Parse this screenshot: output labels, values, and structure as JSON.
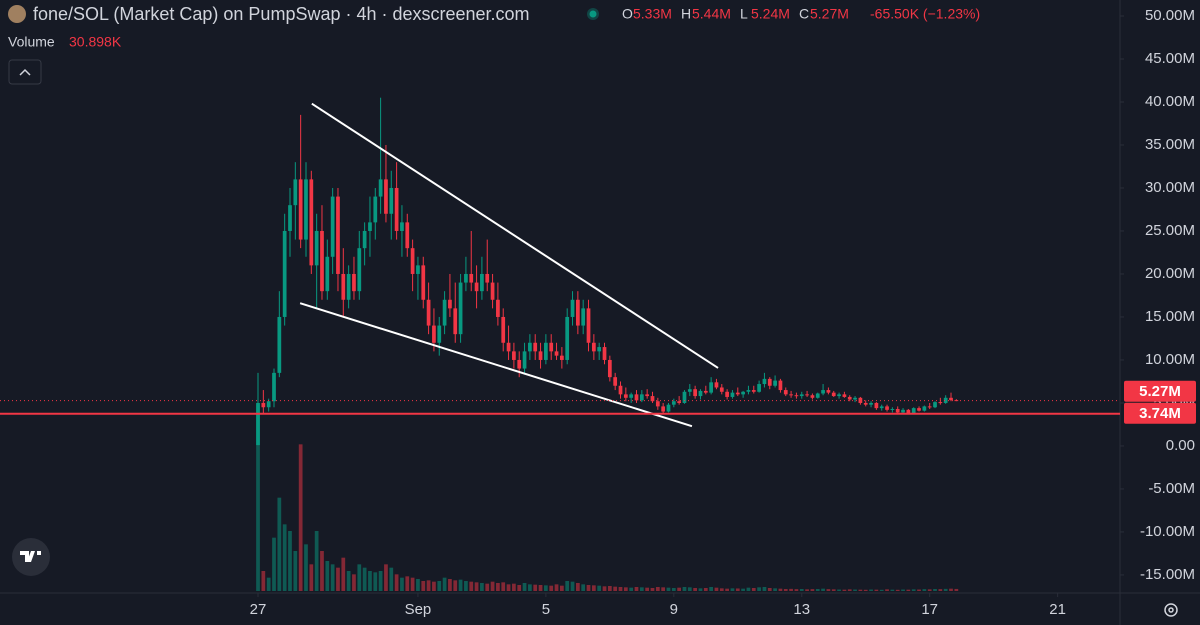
{
  "header": {
    "title": "fone/SOL (Market Cap) on PumpSwap · 4h · dexscreener.com",
    "ohlc": [
      {
        "key": "O",
        "value": "5.33M"
      },
      {
        "key": "H",
        "value": "5.44M"
      },
      {
        "key": "L",
        "value": "5.24M"
      },
      {
        "key": "C",
        "value": "5.27M"
      }
    ],
    "change": "-65.50K (−1.23%)",
    "volume_label": "Volume",
    "volume_value": "30.898K"
  },
  "chart_data": {
    "type": "candlestick",
    "up_color": "#089981",
    "down_color": "#f23645",
    "x": [
      0,
      1,
      2,
      3,
      4,
      5,
      6,
      7,
      8,
      9,
      10,
      11,
      12,
      13,
      14,
      15,
      16,
      17,
      18,
      19,
      20,
      21,
      22,
      23,
      24,
      25,
      26,
      27,
      28,
      29,
      30,
      31,
      32,
      33,
      34,
      35,
      36,
      37,
      38,
      39,
      40,
      41,
      42,
      43,
      44,
      45,
      46,
      47,
      48,
      49,
      50,
      51,
      52,
      53,
      54,
      55,
      56,
      57,
      58,
      59,
      60,
      61,
      62,
      63,
      64,
      65,
      66,
      67,
      68,
      69,
      70,
      71,
      72,
      73,
      74,
      75,
      76,
      77,
      78,
      79,
      80,
      81,
      82,
      83,
      84,
      85,
      86,
      87,
      88,
      89,
      90,
      91,
      92,
      93,
      94,
      95,
      96,
      97,
      98,
      99,
      100,
      101,
      102,
      103,
      104,
      105,
      106,
      107,
      108,
      109,
      110,
      111,
      112,
      113,
      114,
      115,
      116,
      117,
      118,
      119,
      120,
      121,
      122,
      123,
      124,
      125,
      126,
      127,
      128,
      129,
      130,
      131
    ],
    "ohlc": [
      [
        0.1,
        8.5,
        0.1,
        5.0
      ],
      [
        5.0,
        6.5,
        3.8,
        4.5
      ],
      [
        4.5,
        5.5,
        4.0,
        5.2
      ],
      [
        5.2,
        9.0,
        4.5,
        8.5
      ],
      [
        8.5,
        18,
        8,
        15
      ],
      [
        15,
        27,
        14,
        25
      ],
      [
        25,
        30,
        22,
        28
      ],
      [
        28,
        33,
        24,
        31
      ],
      [
        31,
        38.5,
        23,
        24
      ],
      [
        24,
        33,
        22,
        31
      ],
      [
        31,
        32,
        20,
        21
      ],
      [
        21,
        27,
        16,
        25
      ],
      [
        25,
        28,
        17,
        18
      ],
      [
        18,
        24,
        17,
        22
      ],
      [
        22,
        30,
        20,
        29
      ],
      [
        29,
        30,
        18,
        20
      ],
      [
        20,
        23,
        15,
        17
      ],
      [
        17,
        21,
        16,
        20
      ],
      [
        20,
        22,
        17,
        18
      ],
      [
        18,
        25,
        17,
        23
      ],
      [
        23,
        26,
        21,
        25
      ],
      [
        25,
        29,
        22,
        26
      ],
      [
        26,
        30,
        24,
        29
      ],
      [
        29,
        40.5,
        27,
        31
      ],
      [
        31,
        35,
        26,
        27
      ],
      [
        27,
        32,
        24,
        30
      ],
      [
        30,
        33,
        24,
        25
      ],
      [
        25,
        28,
        22,
        26
      ],
      [
        26,
        27,
        22,
        23
      ],
      [
        23,
        24,
        18,
        20
      ],
      [
        20,
        22,
        17,
        21
      ],
      [
        21,
        22,
        16,
        17
      ],
      [
        17,
        19,
        13,
        14
      ],
      [
        14,
        16,
        11,
        12
      ],
      [
        12,
        15,
        10.5,
        14
      ],
      [
        14,
        18,
        13,
        17
      ],
      [
        17,
        20,
        15,
        16
      ],
      [
        16,
        19,
        12,
        13
      ],
      [
        13,
        20,
        12,
        19
      ],
      [
        19,
        22,
        18,
        20
      ],
      [
        20,
        25,
        18,
        19
      ],
      [
        19,
        21,
        16,
        18
      ],
      [
        18,
        22,
        17,
        20
      ],
      [
        20,
        24,
        18,
        19
      ],
      [
        19,
        20,
        16,
        17
      ],
      [
        17,
        19,
        14,
        15
      ],
      [
        15,
        16,
        11,
        12
      ],
      [
        12,
        14,
        10,
        11
      ],
      [
        11,
        12,
        9,
        10
      ],
      [
        10,
        11,
        8,
        9
      ],
      [
        9,
        12,
        8.5,
        11
      ],
      [
        11,
        13,
        10,
        12
      ],
      [
        12,
        13,
        10,
        11
      ],
      [
        11,
        12,
        9,
        10
      ],
      [
        10,
        13,
        9.5,
        12
      ],
      [
        12,
        13,
        10,
        11
      ],
      [
        11,
        12,
        10,
        10.5
      ],
      [
        10.5,
        11.5,
        9,
        10
      ],
      [
        10,
        16,
        9.5,
        15
      ],
      [
        15,
        18,
        14,
        17
      ],
      [
        17,
        18,
        13,
        14
      ],
      [
        14,
        17,
        13,
        16
      ],
      [
        16,
        17,
        11,
        12
      ],
      [
        12,
        13,
        10,
        11
      ],
      [
        11,
        12,
        10,
        11.5
      ],
      [
        11.5,
        12,
        9.5,
        10
      ],
      [
        10,
        10.5,
        7.5,
        8
      ],
      [
        8,
        8.5,
        6.5,
        7
      ],
      [
        7,
        7.5,
        5.5,
        6
      ],
      [
        6,
        6.8,
        5.2,
        5.6
      ],
      [
        5.6,
        6.2,
        5,
        6
      ],
      [
        6,
        6.5,
        5,
        5.3
      ],
      [
        5.3,
        6.5,
        5.1,
        6
      ],
      [
        6,
        6.6,
        5.5,
        5.8
      ],
      [
        5.8,
        6.3,
        5,
        5.2
      ],
      [
        5.2,
        5.6,
        4.2,
        4.6
      ],
      [
        4.6,
        5,
        3.8,
        4
      ],
      [
        4,
        5,
        3.9,
        4.8
      ],
      [
        4.8,
        5.5,
        4.5,
        5.2
      ],
      [
        5.2,
        5.8,
        4.8,
        5
      ],
      [
        5,
        6.5,
        4.9,
        6.3
      ],
      [
        6.3,
        7.2,
        5.8,
        6.6
      ],
      [
        6.6,
        7,
        5.5,
        5.8
      ],
      [
        5.8,
        6.6,
        5.4,
        6.4
      ],
      [
        6.4,
        7,
        6,
        6.2
      ],
      [
        6.2,
        8,
        6,
        7.4
      ],
      [
        7.4,
        7.8,
        6.6,
        6.8
      ],
      [
        6.8,
        7.2,
        6,
        6.3
      ],
      [
        6.3,
        6.6,
        5.4,
        5.7
      ],
      [
        5.7,
        6.5,
        5.5,
        6.2
      ],
      [
        6.2,
        6.8,
        5.8,
        6
      ],
      [
        6,
        6.4,
        5.6,
        6.3
      ],
      [
        6.3,
        7,
        6,
        6.5
      ],
      [
        6.5,
        7,
        6.1,
        6.3
      ],
      [
        6.3,
        7.6,
        6.2,
        7.2
      ],
      [
        7.2,
        8.5,
        6.8,
        7.8
      ],
      [
        7.8,
        8,
        6.6,
        7
      ],
      [
        7,
        8.2,
        6.8,
        7.6
      ],
      [
        7.6,
        7.8,
        6.2,
        6.5
      ],
      [
        6.5,
        6.8,
        5.8,
        6
      ],
      [
        6,
        6.4,
        5.6,
        5.9
      ],
      [
        5.9,
        6.2,
        5.5,
        5.8
      ],
      [
        5.8,
        6.3,
        5.5,
        6
      ],
      [
        6,
        6.4,
        5.7,
        5.9
      ],
      [
        5.9,
        6.1,
        5.4,
        5.6
      ],
      [
        5.6,
        6.2,
        5.5,
        6.1
      ],
      [
        6.1,
        7.2,
        5.9,
        6.5
      ],
      [
        6.5,
        6.8,
        6,
        6.2
      ],
      [
        6.2,
        6.4,
        5.7,
        5.8
      ],
      [
        5.8,
        6.2,
        5.5,
        6
      ],
      [
        6,
        6.3,
        5.6,
        5.7
      ],
      [
        5.7,
        5.9,
        5.2,
        5.4
      ],
      [
        5.4,
        5.8,
        5.1,
        5.6
      ],
      [
        5.6,
        5.7,
        4.8,
        5
      ],
      [
        5,
        5.3,
        4.6,
        4.8
      ],
      [
        4.8,
        5.2,
        4.5,
        5
      ],
      [
        5,
        5.1,
        4.2,
        4.4
      ],
      [
        4.4,
        4.8,
        4.1,
        4.6
      ],
      [
        4.6,
        4.8,
        4,
        4.2
      ],
      [
        4.2,
        4.5,
        3.9,
        4.3
      ],
      [
        4.3,
        4.6,
        3.8,
        3.9
      ],
      [
        3.9,
        4.4,
        3.7,
        4.2
      ],
      [
        4.2,
        4.3,
        3.7,
        3.8
      ],
      [
        3.8,
        4.5,
        3.7,
        4.4
      ],
      [
        4.4,
        4.6,
        4,
        4.1
      ],
      [
        4.1,
        4.7,
        4,
        4.6
      ],
      [
        4.6,
        5,
        4.3,
        4.5
      ],
      [
        4.5,
        5.2,
        4.4,
        5.1
      ],
      [
        5.1,
        5.6,
        4.8,
        5
      ],
      [
        5,
        5.9,
        4.9,
        5.6
      ],
      [
        5.6,
        6.2,
        5.2,
        5.33
      ],
      [
        5.33,
        5.44,
        5.24,
        5.27
      ]
    ],
    "volume": [
      2800,
      300,
      200,
      800,
      1400,
      1000,
      900,
      600,
      2200,
      700,
      400,
      900,
      600,
      450,
      400,
      350,
      500,
      300,
      250,
      400,
      350,
      300,
      280,
      300,
      400,
      350,
      250,
      200,
      220,
      200,
      180,
      150,
      160,
      140,
      150,
      200,
      180,
      160,
      170,
      150,
      140,
      130,
      120,
      110,
      140,
      120,
      130,
      100,
      110,
      90,
      120,
      100,
      95,
      90,
      85,
      80,
      100,
      80,
      150,
      140,
      120,
      100,
      90,
      85,
      80,
      70,
      75,
      65,
      60,
      55,
      50,
      60,
      55,
      50,
      45,
      60,
      55,
      50,
      45,
      50,
      60,
      55,
      45,
      40,
      45,
      60,
      50,
      40,
      35,
      40,
      38,
      35,
      50,
      45,
      55,
      60,
      45,
      40,
      35,
      30,
      32,
      28,
      30,
      25,
      28,
      30,
      35,
      28,
      25,
      22,
      20,
      25,
      22,
      20,
      18,
      22,
      20,
      18,
      25,
      20,
      18,
      22,
      20,
      25,
      22,
      28,
      25,
      30,
      28,
      32,
      35,
      30.898
    ],
    "volume_lim": [
      0,
      3000
    ],
    "xlim": [
      -48.4,
      161.7
    ],
    "xticks": [
      {
        "value": 0,
        "label": "27"
      },
      {
        "value": 30,
        "label": "Sep"
      },
      {
        "value": 54,
        "label": "5"
      },
      {
        "value": 78,
        "label": "9"
      },
      {
        "value": 102,
        "label": "13"
      },
      {
        "value": 126,
        "label": "17"
      },
      {
        "value": 150,
        "label": "21"
      }
    ],
    "ylim": [
      -17.1,
      51.86
    ],
    "yticks": [
      {
        "value": 50,
        "label": "50.00M"
      },
      {
        "value": 45,
        "label": "45.00M"
      },
      {
        "value": 40,
        "label": "40.00M"
      },
      {
        "value": 35,
        "label": "35.00M"
      },
      {
        "value": 30,
        "label": "30.00M"
      },
      {
        "value": 25,
        "label": "25.00M"
      },
      {
        "value": 20,
        "label": "20.00M"
      },
      {
        "value": 15,
        "label": "15.00M"
      },
      {
        "value": 10,
        "label": "10.00M"
      },
      {
        "value": 5,
        "label": "5.00M"
      },
      {
        "value": 0,
        "label": "0.00"
      },
      {
        "value": -5,
        "label": "-5.00M"
      },
      {
        "value": -10,
        "label": "-10.00M"
      },
      {
        "value": -15,
        "label": "-15.00M"
      }
    ],
    "last_price": {
      "value": 5.27,
      "label": "5.27M"
    },
    "level": {
      "value": 3.74,
      "label": "3.74M"
    },
    "trendlines": [
      [
        [
          10.1,
          39.8
        ],
        [
          86.3,
          9.07
        ]
      ],
      [
        [
          7.9,
          16.6
        ],
        [
          81.4,
          2.3
        ]
      ]
    ]
  }
}
